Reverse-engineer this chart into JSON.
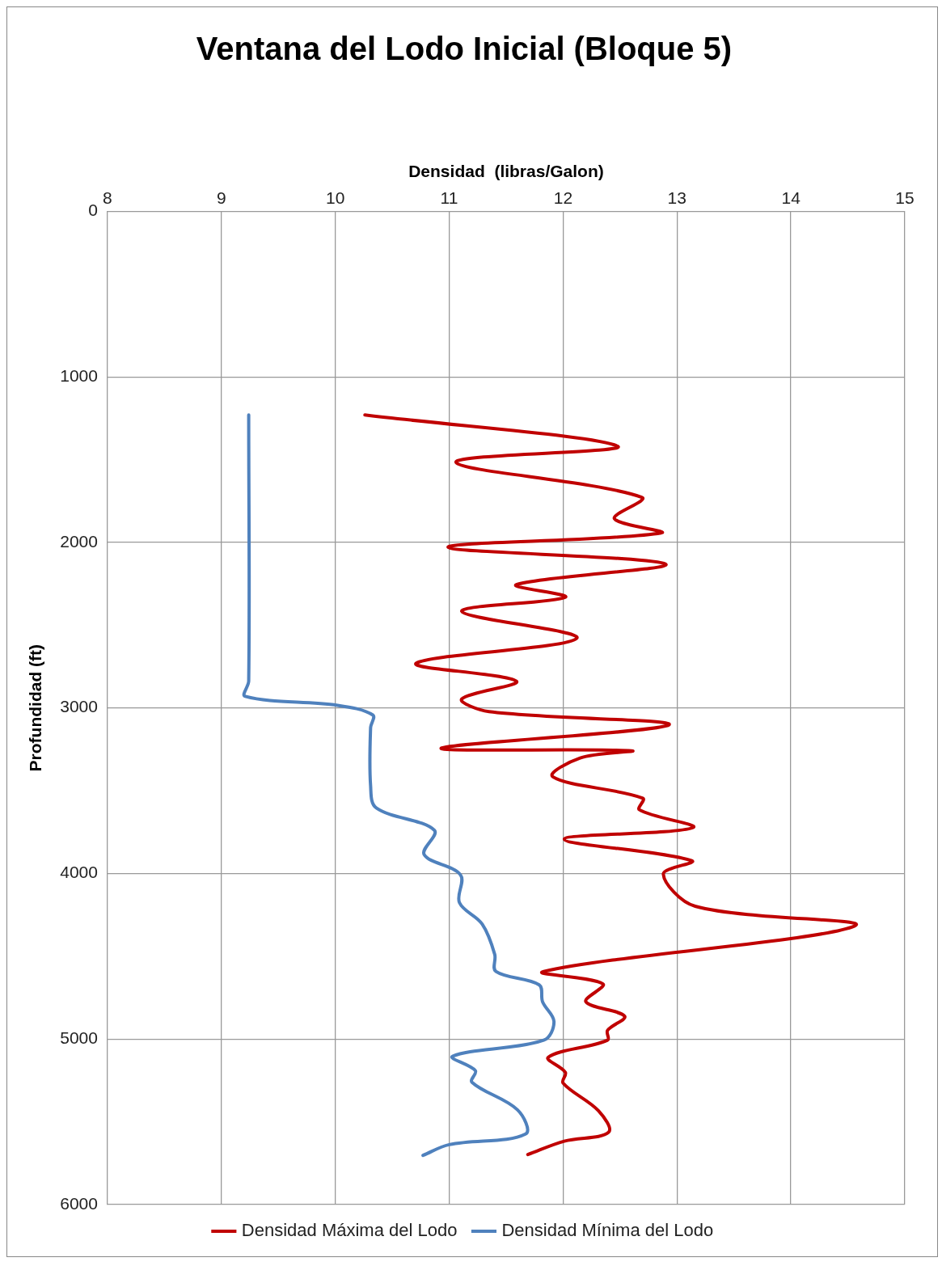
{
  "chart_data": {
    "type": "line",
    "title": "Ventana del Lodo Inicial (Bloque 5)",
    "xlabel": "Densidad  (libras/Galon)",
    "ylabel": "Profundidad (ft)",
    "xlim": [
      8,
      15
    ],
    "xticks": [
      8,
      9,
      10,
      11,
      12,
      13,
      14,
      15
    ],
    "ylim": [
      6000,
      0
    ],
    "yticks": [
      0,
      1000,
      2000,
      3000,
      4000,
      5000,
      6000
    ],
    "grid": true,
    "legend": "bottom",
    "series": [
      {
        "name": "Densidad Máxima del Lodo",
        "color": "#c00000",
        "x": [
          10.26,
          12.48,
          11.06,
          12.69,
          12.45,
          12.86,
          10.99,
          12.9,
          11.59,
          12.02,
          11.11,
          12.12,
          10.71,
          11.59,
          11.11,
          11.35,
          12.93,
          10.93,
          12.6,
          12.15,
          11.91,
          12.7,
          12.67,
          13.14,
          12.01,
          13.13,
          12.88,
          13.16,
          14.56,
          11.83,
          12.35,
          12.2,
          12.54,
          12.39,
          12.39,
          11.87,
          12.02,
          12.0,
          12.31,
          12.4,
          12.01,
          11.69
        ],
        "values": [
          1230,
          1419,
          1516,
          1727,
          1856,
          1943,
          2029,
          2131,
          2255,
          2331,
          2417,
          2579,
          2730,
          2838,
          2946,
          3022,
          3102,
          3243,
          3259,
          3302,
          3416,
          3545,
          3615,
          3723,
          3793,
          3923,
          4004,
          4198,
          4317,
          4592,
          4667,
          4775,
          4862,
          4948,
          5007,
          5110,
          5202,
          5266,
          5433,
          5563,
          5617,
          5698
        ]
      },
      {
        "name": "Densidad Mínima del Lodo",
        "color": "#4f81bd",
        "x": [
          9.24,
          9.24,
          9.21,
          10.02,
          10.33,
          10.31,
          10.31,
          10.36,
          10.87,
          10.78,
          11.1,
          11.09,
          11.29,
          11.4,
          11.41,
          11.79,
          11.82,
          11.92,
          11.83,
          11.03,
          11.23,
          11.2,
          11.6,
          11.67,
          11.0,
          10.77
        ],
        "values": [
          1230,
          2838,
          2930,
          2984,
          3043,
          3119,
          3470,
          3604,
          3739,
          3885,
          4009,
          4176,
          4306,
          4489,
          4592,
          4673,
          4775,
          4894,
          5007,
          5104,
          5191,
          5261,
          5428,
          5574,
          5638,
          5703
        ]
      }
    ]
  }
}
